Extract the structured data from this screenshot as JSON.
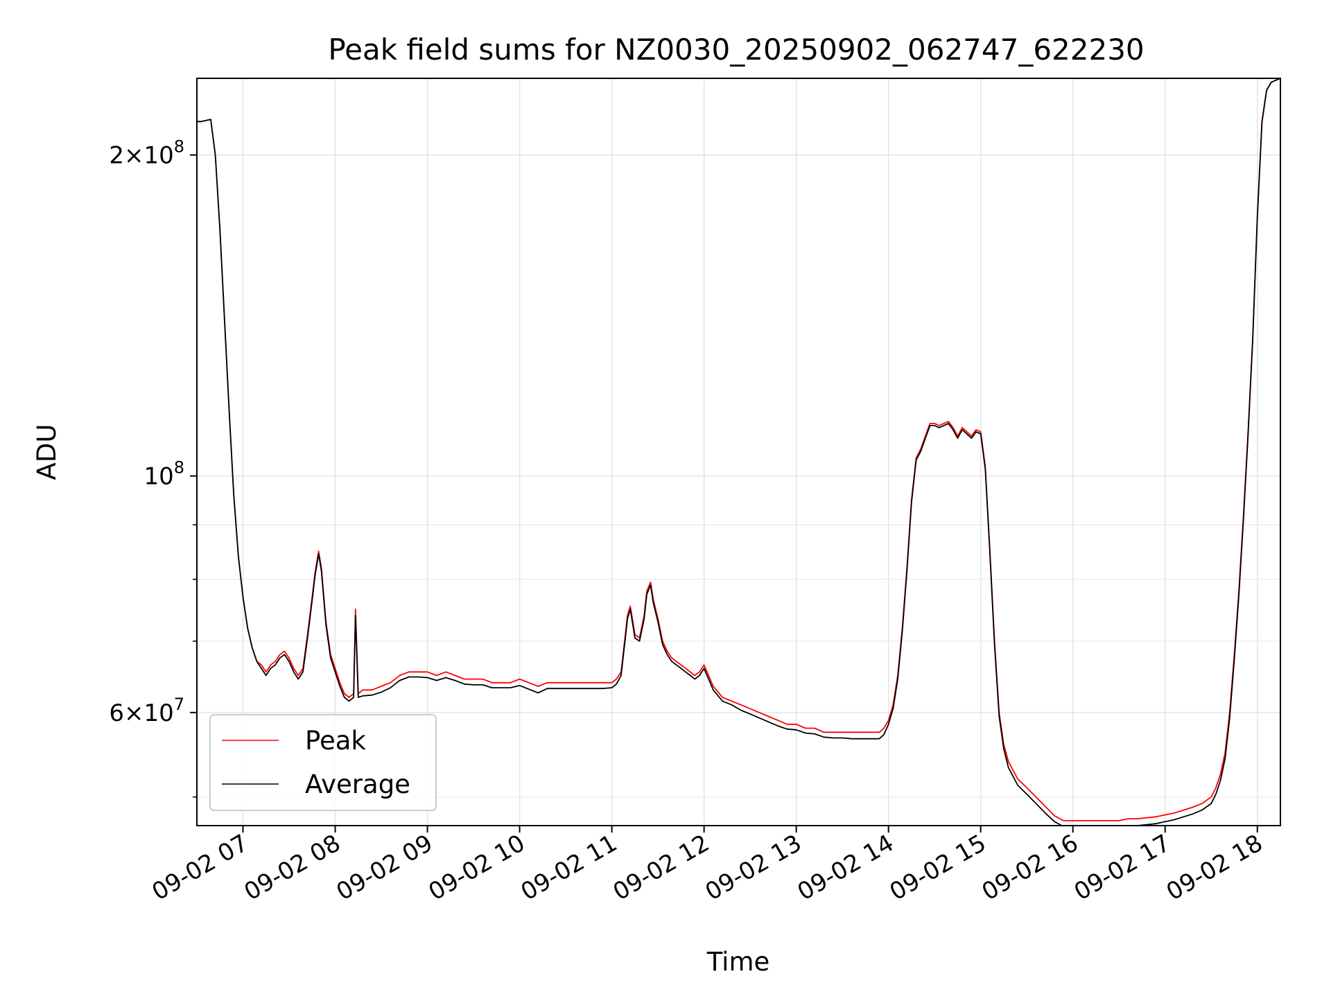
{
  "chart_data": {
    "type": "line",
    "title": "Peak field sums for NZ0030_20250902_062747_622230",
    "xlabel": "Time",
    "ylabel": "ADU",
    "x_unit": "hour of day on 2025-09-02",
    "xlim": [
      6.5,
      18.25
    ],
    "ylim": [
      47000000,
      236000000
    ],
    "yscale": "log",
    "grid": true,
    "legend_position": "lower-left",
    "x_ticks": [
      {
        "value": 7,
        "label": "09-02 07"
      },
      {
        "value": 8,
        "label": "09-02 08"
      },
      {
        "value": 9,
        "label": "09-02 09"
      },
      {
        "value": 10,
        "label": "09-02 10"
      },
      {
        "value": 11,
        "label": "09-02 11"
      },
      {
        "value": 12,
        "label": "09-02 12"
      },
      {
        "value": 13,
        "label": "09-02 13"
      },
      {
        "value": 14,
        "label": "09-02 14"
      },
      {
        "value": 15,
        "label": "09-02 15"
      },
      {
        "value": 16,
        "label": "09-02 16"
      },
      {
        "value": 17,
        "label": "09-02 17"
      },
      {
        "value": 18,
        "label": "09-02 18"
      }
    ],
    "y_major_ticks": [
      {
        "value": 60000000,
        "mantissa": "6",
        "exponent": "7"
      },
      {
        "value": 100000000,
        "mantissa": "",
        "exponent": "8"
      },
      {
        "value": 200000000,
        "mantissa": "2",
        "exponent": "8"
      }
    ],
    "y_minor_ticks": [
      50000000,
      70000000,
      80000000,
      90000000,
      300000000
    ],
    "series": [
      {
        "name": "Peak",
        "color": "#ff0000",
        "x": [
          6.5,
          6.55,
          6.6,
          6.65,
          6.7,
          6.75,
          6.8,
          6.85,
          6.9,
          6.95,
          7.0,
          7.05,
          7.1,
          7.15,
          7.2,
          7.25,
          7.3,
          7.35,
          7.4,
          7.45,
          7.5,
          7.55,
          7.6,
          7.65,
          7.7,
          7.75,
          7.78,
          7.82,
          7.85,
          7.9,
          7.95,
          8.0,
          8.05,
          8.1,
          8.15,
          8.2,
          8.22,
          8.25,
          8.3,
          8.4,
          8.5,
          8.6,
          8.7,
          8.8,
          8.9,
          9.0,
          9.1,
          9.2,
          9.3,
          9.4,
          9.5,
          9.6,
          9.7,
          9.8,
          9.9,
          10.0,
          10.1,
          10.2,
          10.3,
          10.4,
          10.5,
          10.6,
          10.7,
          10.8,
          10.9,
          11.0,
          11.05,
          11.1,
          11.13,
          11.17,
          11.2,
          11.25,
          11.3,
          11.35,
          11.38,
          11.42,
          11.45,
          11.5,
          11.55,
          11.6,
          11.65,
          11.7,
          11.75,
          11.8,
          11.85,
          11.9,
          11.95,
          12.0,
          12.1,
          12.2,
          12.3,
          12.4,
          12.5,
          12.6,
          12.7,
          12.8,
          12.9,
          13.0,
          13.1,
          13.2,
          13.3,
          13.4,
          13.5,
          13.6,
          13.7,
          13.8,
          13.9,
          13.95,
          14.0,
          14.05,
          14.1,
          14.15,
          14.2,
          14.25,
          14.3,
          14.35,
          14.4,
          14.45,
          14.5,
          14.55,
          14.6,
          14.65,
          14.7,
          14.75,
          14.8,
          14.85,
          14.9,
          14.95,
          15.0,
          15.05,
          15.1,
          15.15,
          15.2,
          15.25,
          15.3,
          15.35,
          15.4,
          15.45,
          15.5,
          15.6,
          15.7,
          15.8,
          15.9,
          16.0,
          16.1,
          16.2,
          16.3,
          16.4,
          16.5,
          16.6,
          16.7,
          16.8,
          16.9,
          17.0,
          17.1,
          17.2,
          17.3,
          17.4,
          17.5,
          17.55,
          17.6,
          17.65,
          17.7,
          17.75,
          17.8,
          17.85,
          17.9,
          17.95,
          18.0,
          18.05,
          18.1,
          18.15,
          18.2,
          18.25
        ],
        "y": [
          215000000,
          215000000,
          215500000,
          216000000,
          200000000,
          170000000,
          140000000,
          115000000,
          96000000,
          84000000,
          77000000,
          72000000,
          69000000,
          67000000,
          66500000,
          65500000,
          66500000,
          67000000,
          68000000,
          68500000,
          67500000,
          66000000,
          65000000,
          66000000,
          71000000,
          77000000,
          81000000,
          85000000,
          82000000,
          73000000,
          68000000,
          66000000,
          64000000,
          62500000,
          62000000,
          62500000,
          75000000,
          62500000,
          63000000,
          63000000,
          63500000,
          64000000,
          65000000,
          65500000,
          65500000,
          65500000,
          65000000,
          65500000,
          65000000,
          64500000,
          64500000,
          64500000,
          64000000,
          64000000,
          64000000,
          64500000,
          64000000,
          63500000,
          64000000,
          64000000,
          64000000,
          64000000,
          64000000,
          64000000,
          64000000,
          64000000,
          64500000,
          65500000,
          69000000,
          74000000,
          75500000,
          71000000,
          70500000,
          74000000,
          78000000,
          79500000,
          76500000,
          73500000,
          70000000,
          68500000,
          67500000,
          67000000,
          66500000,
          66000000,
          65500000,
          65000000,
          65500000,
          66500000,
          63500000,
          62000000,
          61500000,
          61000000,
          60500000,
          60000000,
          59500000,
          59000000,
          58500000,
          58500000,
          58000000,
          58000000,
          57500000,
          57500000,
          57500000,
          57500000,
          57500000,
          57500000,
          57500000,
          58000000,
          59000000,
          61000000,
          65000000,
          72000000,
          82000000,
          95000000,
          104000000,
          106000000,
          109000000,
          112000000,
          112000000,
          111500000,
          112000000,
          112500000,
          111000000,
          109000000,
          111000000,
          110000000,
          109000000,
          110500000,
          110000000,
          102000000,
          85000000,
          70000000,
          60000000,
          56000000,
          54000000,
          53000000,
          52000000,
          51500000,
          51000000,
          50000000,
          49000000,
          48000000,
          47500000,
          47500000,
          47500000,
          47500000,
          47500000,
          47500000,
          47500000,
          47700000,
          47700000,
          47800000,
          47900000,
          48100000,
          48300000,
          48600000,
          48900000,
          49300000,
          50000000,
          51000000,
          52500000,
          55000000,
          60000000,
          68000000,
          78000000,
          92000000,
          110000000,
          135000000,
          175000000,
          215000000,
          230000000,
          234000000,
          235000000,
          236000000
        ]
      },
      {
        "name": "Average",
        "color": "#000000",
        "x": [
          6.5,
          6.55,
          6.6,
          6.65,
          6.7,
          6.75,
          6.8,
          6.85,
          6.9,
          6.95,
          7.0,
          7.05,
          7.1,
          7.15,
          7.2,
          7.25,
          7.3,
          7.35,
          7.4,
          7.45,
          7.5,
          7.55,
          7.6,
          7.65,
          7.7,
          7.75,
          7.78,
          7.82,
          7.85,
          7.9,
          7.95,
          8.0,
          8.05,
          8.1,
          8.15,
          8.2,
          8.22,
          8.25,
          8.3,
          8.4,
          8.5,
          8.6,
          8.7,
          8.8,
          8.9,
          9.0,
          9.1,
          9.2,
          9.3,
          9.4,
          9.5,
          9.6,
          9.7,
          9.8,
          9.9,
          10.0,
          10.1,
          10.2,
          10.3,
          10.4,
          10.5,
          10.6,
          10.7,
          10.8,
          10.9,
          11.0,
          11.05,
          11.1,
          11.13,
          11.17,
          11.2,
          11.25,
          11.3,
          11.35,
          11.38,
          11.42,
          11.45,
          11.5,
          11.55,
          11.6,
          11.65,
          11.7,
          11.75,
          11.8,
          11.85,
          11.9,
          11.95,
          12.0,
          12.1,
          12.2,
          12.3,
          12.4,
          12.5,
          12.6,
          12.7,
          12.8,
          12.9,
          13.0,
          13.1,
          13.2,
          13.3,
          13.4,
          13.5,
          13.6,
          13.7,
          13.8,
          13.9,
          13.95,
          14.0,
          14.05,
          14.1,
          14.15,
          14.2,
          14.25,
          14.3,
          14.35,
          14.4,
          14.45,
          14.5,
          14.55,
          14.6,
          14.65,
          14.7,
          14.75,
          14.8,
          14.85,
          14.9,
          14.95,
          15.0,
          15.05,
          15.1,
          15.15,
          15.2,
          15.25,
          15.3,
          15.35,
          15.4,
          15.45,
          15.5,
          15.6,
          15.7,
          15.8,
          15.9,
          16.0,
          16.1,
          16.2,
          16.3,
          16.4,
          16.5,
          16.6,
          16.7,
          16.8,
          16.9,
          17.0,
          17.1,
          17.2,
          17.3,
          17.4,
          17.5,
          17.55,
          17.6,
          17.65,
          17.7,
          17.75,
          17.8,
          17.85,
          17.9,
          17.95,
          18.0,
          18.05,
          18.1,
          18.15,
          18.2,
          18.25
        ],
        "y": [
          215000000,
          215000000,
          215500000,
          216000000,
          200000000,
          170000000,
          140000000,
          115000000,
          96000000,
          84000000,
          77000000,
          72000000,
          69000000,
          67000000,
          66000000,
          65000000,
          66000000,
          66500000,
          67500000,
          68000000,
          67000000,
          65500000,
          64500000,
          65500000,
          70500000,
          76500000,
          80500000,
          84500000,
          81500000,
          72500000,
          67500000,
          65500000,
          63500000,
          62000000,
          61500000,
          62000000,
          74000000,
          62000000,
          62200000,
          62300000,
          62700000,
          63300000,
          64300000,
          64800000,
          64800000,
          64700000,
          64300000,
          64700000,
          64300000,
          63800000,
          63700000,
          63700000,
          63300000,
          63300000,
          63300000,
          63600000,
          63100000,
          62600000,
          63200000,
          63200000,
          63200000,
          63200000,
          63200000,
          63200000,
          63200000,
          63300000,
          63800000,
          65000000,
          68500000,
          73500000,
          75000000,
          70500000,
          70000000,
          73500000,
          77500000,
          79000000,
          76000000,
          73000000,
          69500000,
          68000000,
          67000000,
          66500000,
          66000000,
          65500000,
          65000000,
          64500000,
          65000000,
          66000000,
          63000000,
          61500000,
          61000000,
          60300000,
          59800000,
          59300000,
          58800000,
          58300000,
          57900000,
          57800000,
          57400000,
          57300000,
          56900000,
          56800000,
          56800000,
          56700000,
          56700000,
          56700000,
          56700000,
          57200000,
          58500000,
          60500000,
          64500000,
          71500000,
          81500000,
          94500000,
          103500000,
          105500000,
          108500000,
          111500000,
          111500000,
          111000000,
          111500000,
          112000000,
          110500000,
          108500000,
          110500000,
          109500000,
          108500000,
          110000000,
          109500000,
          101500000,
          84500000,
          69500000,
          59500000,
          55500000,
          53300000,
          52300000,
          51300000,
          50800000,
          50300000,
          49300000,
          48300000,
          47400000,
          46900000,
          46900000,
          46900000,
          46800000,
          46800000,
          46800000,
          46800000,
          47000000,
          47000000,
          47100000,
          47200000,
          47400000,
          47600000,
          47900000,
          48200000,
          48600000,
          49300000,
          50300000,
          51800000,
          54300000,
          59300000,
          67300000,
          77300000,
          91300000,
          109300000,
          134300000,
          174500000,
          214500000,
          229800000,
          234000000,
          235000000,
          236000000
        ]
      }
    ]
  }
}
